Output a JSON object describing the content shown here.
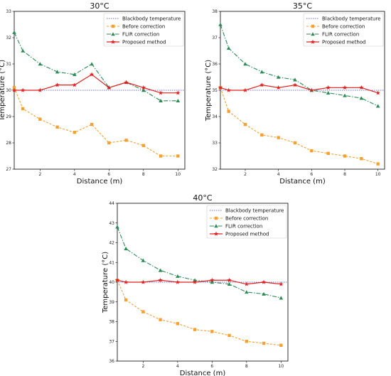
{
  "legend_order": [
    "Blackbody temperature",
    "Before correction",
    "FLIR correction",
    "Proposed method"
  ],
  "colors": {
    "Blackbody temperature": "#6f6fd6",
    "Before correction": "#f5a030",
    "FLIR correction": "#2e8b57",
    "Proposed method": "#e02020"
  },
  "chart_data": [
    {
      "type": "line",
      "title": "30°C",
      "xlabel": "Distance (m)",
      "ylabel": "Temperature (°C)",
      "x": [
        0.5,
        1,
        2,
        3,
        4,
        5,
        6,
        7,
        8,
        9,
        10
      ],
      "xlim": [
        0.5,
        10.4
      ],
      "ylim": [
        27,
        33
      ],
      "xticks": [
        2,
        4,
        6,
        8,
        10
      ],
      "yticks": [
        27,
        28,
        29,
        30,
        31,
        32,
        33
      ],
      "legend_position": "top-right",
      "series": [
        {
          "name": "Blackbody temperature",
          "values": [
            30,
            30,
            30,
            30,
            30,
            30,
            30,
            30,
            30,
            30,
            30
          ]
        },
        {
          "name": "Before correction",
          "values": [
            30.1,
            29.3,
            28.9,
            28.6,
            28.4,
            28.7,
            28.0,
            28.1,
            27.9,
            27.5,
            27.5
          ]
        },
        {
          "name": "FLIR correction",
          "values": [
            32.2,
            31.5,
            31.0,
            30.7,
            30.6,
            31.0,
            30.1,
            30.3,
            30.0,
            29.6,
            29.6
          ]
        },
        {
          "name": "Proposed method",
          "values": [
            30.0,
            30.0,
            30.0,
            30.2,
            30.2,
            30.6,
            30.1,
            30.3,
            30.1,
            29.9,
            29.9
          ]
        }
      ]
    },
    {
      "type": "line",
      "title": "35°C",
      "xlabel": "Distance (m)",
      "ylabel": "Temperature (°C)",
      "x": [
        0.5,
        1,
        2,
        3,
        4,
        5,
        6,
        7,
        8,
        9,
        10
      ],
      "xlim": [
        0.5,
        10.4
      ],
      "ylim": [
        32,
        38
      ],
      "xticks": [
        2,
        4,
        6,
        8,
        10
      ],
      "yticks": [
        32,
        33,
        34,
        35,
        36,
        37,
        38
      ],
      "legend_position": "top-right",
      "series": [
        {
          "name": "Blackbody temperature",
          "values": [
            35,
            35,
            35,
            35,
            35,
            35,
            35,
            35,
            35,
            35,
            35
          ]
        },
        {
          "name": "Before correction",
          "values": [
            35.1,
            34.2,
            33.7,
            33.3,
            33.2,
            33.0,
            32.7,
            32.6,
            32.5,
            32.4,
            32.2
          ]
        },
        {
          "name": "FLIR correction",
          "values": [
            37.5,
            36.6,
            36.0,
            35.7,
            35.5,
            35.4,
            35.0,
            34.9,
            34.8,
            34.7,
            34.4
          ]
        },
        {
          "name": "Proposed method",
          "values": [
            35.1,
            35.0,
            35.0,
            35.2,
            35.1,
            35.2,
            35.0,
            35.1,
            35.1,
            35.1,
            34.9
          ]
        }
      ]
    },
    {
      "type": "line",
      "title": "40°C",
      "xlabel": "Distance (m)",
      "ylabel": "Temperature (°C)",
      "x": [
        0.5,
        1,
        2,
        3,
        4,
        5,
        6,
        7,
        8,
        9,
        10
      ],
      "xlim": [
        0.5,
        10.4
      ],
      "ylim": [
        36,
        44
      ],
      "xticks": [
        2,
        4,
        6,
        8,
        10
      ],
      "yticks": [
        36,
        37,
        38,
        39,
        40,
        41,
        42,
        43,
        44
      ],
      "legend_position": "top-right",
      "series": [
        {
          "name": "Blackbody temperature",
          "values": [
            40,
            40,
            40,
            40,
            40,
            40,
            40,
            40,
            40,
            40,
            40
          ]
        },
        {
          "name": "Before correction",
          "values": [
            40.1,
            39.1,
            38.5,
            38.1,
            37.9,
            37.6,
            37.5,
            37.3,
            37.0,
            36.9,
            36.8
          ]
        },
        {
          "name": "FLIR correction",
          "values": [
            42.8,
            41.7,
            41.1,
            40.6,
            40.3,
            40.1,
            40.0,
            39.9,
            39.5,
            39.4,
            39.2
          ]
        },
        {
          "name": "Proposed method",
          "values": [
            40.1,
            40.0,
            40.0,
            40.1,
            40.0,
            40.0,
            40.1,
            40.1,
            39.9,
            40.0,
            39.9
          ]
        }
      ]
    }
  ]
}
